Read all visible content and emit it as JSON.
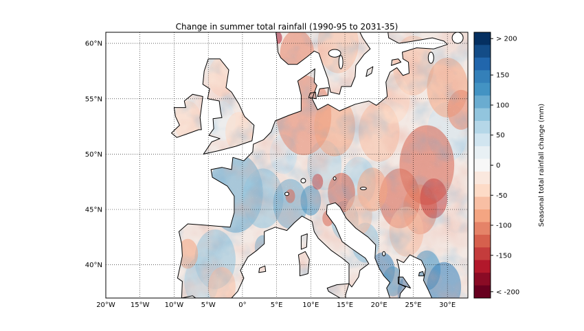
{
  "title": "Change in summer total rainfall (1990-95 to 2031-35)",
  "lon_ticks": [
    "20°W",
    "15°W",
    "10°W",
    "5°W",
    "0°",
    "5°E",
    "10°E",
    "15°E",
    "20°E",
    "25°E",
    "30°E"
  ],
  "lat_ticks": [
    "60°N",
    "55°N",
    "50°N",
    "45°N",
    "40°N"
  ],
  "colorbar": {
    "title": "Seasonal total rainfall change (mm)",
    "labels": [
      "> 200",
      "150",
      "100",
      "50",
      "0",
      "-50",
      "-100",
      "-150",
      "< -200"
    ],
    "range_mm": [
      -200,
      200
    ],
    "bin_width_mm": 20,
    "colors_top_to_bottom": [
      "#053061",
      "#134c87",
      "#2166ac",
      "#3480b9",
      "#4393c3",
      "#6aacd0",
      "#92c5de",
      "#b5d7e8",
      "#d1e5f0",
      "#e8f0f4",
      "#f7f7f7",
      "#fae8de",
      "#fddbc7",
      "#f8bfa4",
      "#f4a582",
      "#e58368",
      "#d6604d",
      "#c43c3c",
      "#b2182b",
      "#8a0b25",
      "#67001f"
    ]
  },
  "map": {
    "projection": "equirectangular",
    "lon_range": [
      -20,
      33
    ],
    "lat_range": [
      37,
      61
    ],
    "gridlines": "dotted",
    "colors": {
      "wet": "#2166ac",
      "dry": "#d6604d",
      "neutral": "#f7f7f7",
      "sea": "#ffffff",
      "coastline": "#000000"
    }
  }
}
